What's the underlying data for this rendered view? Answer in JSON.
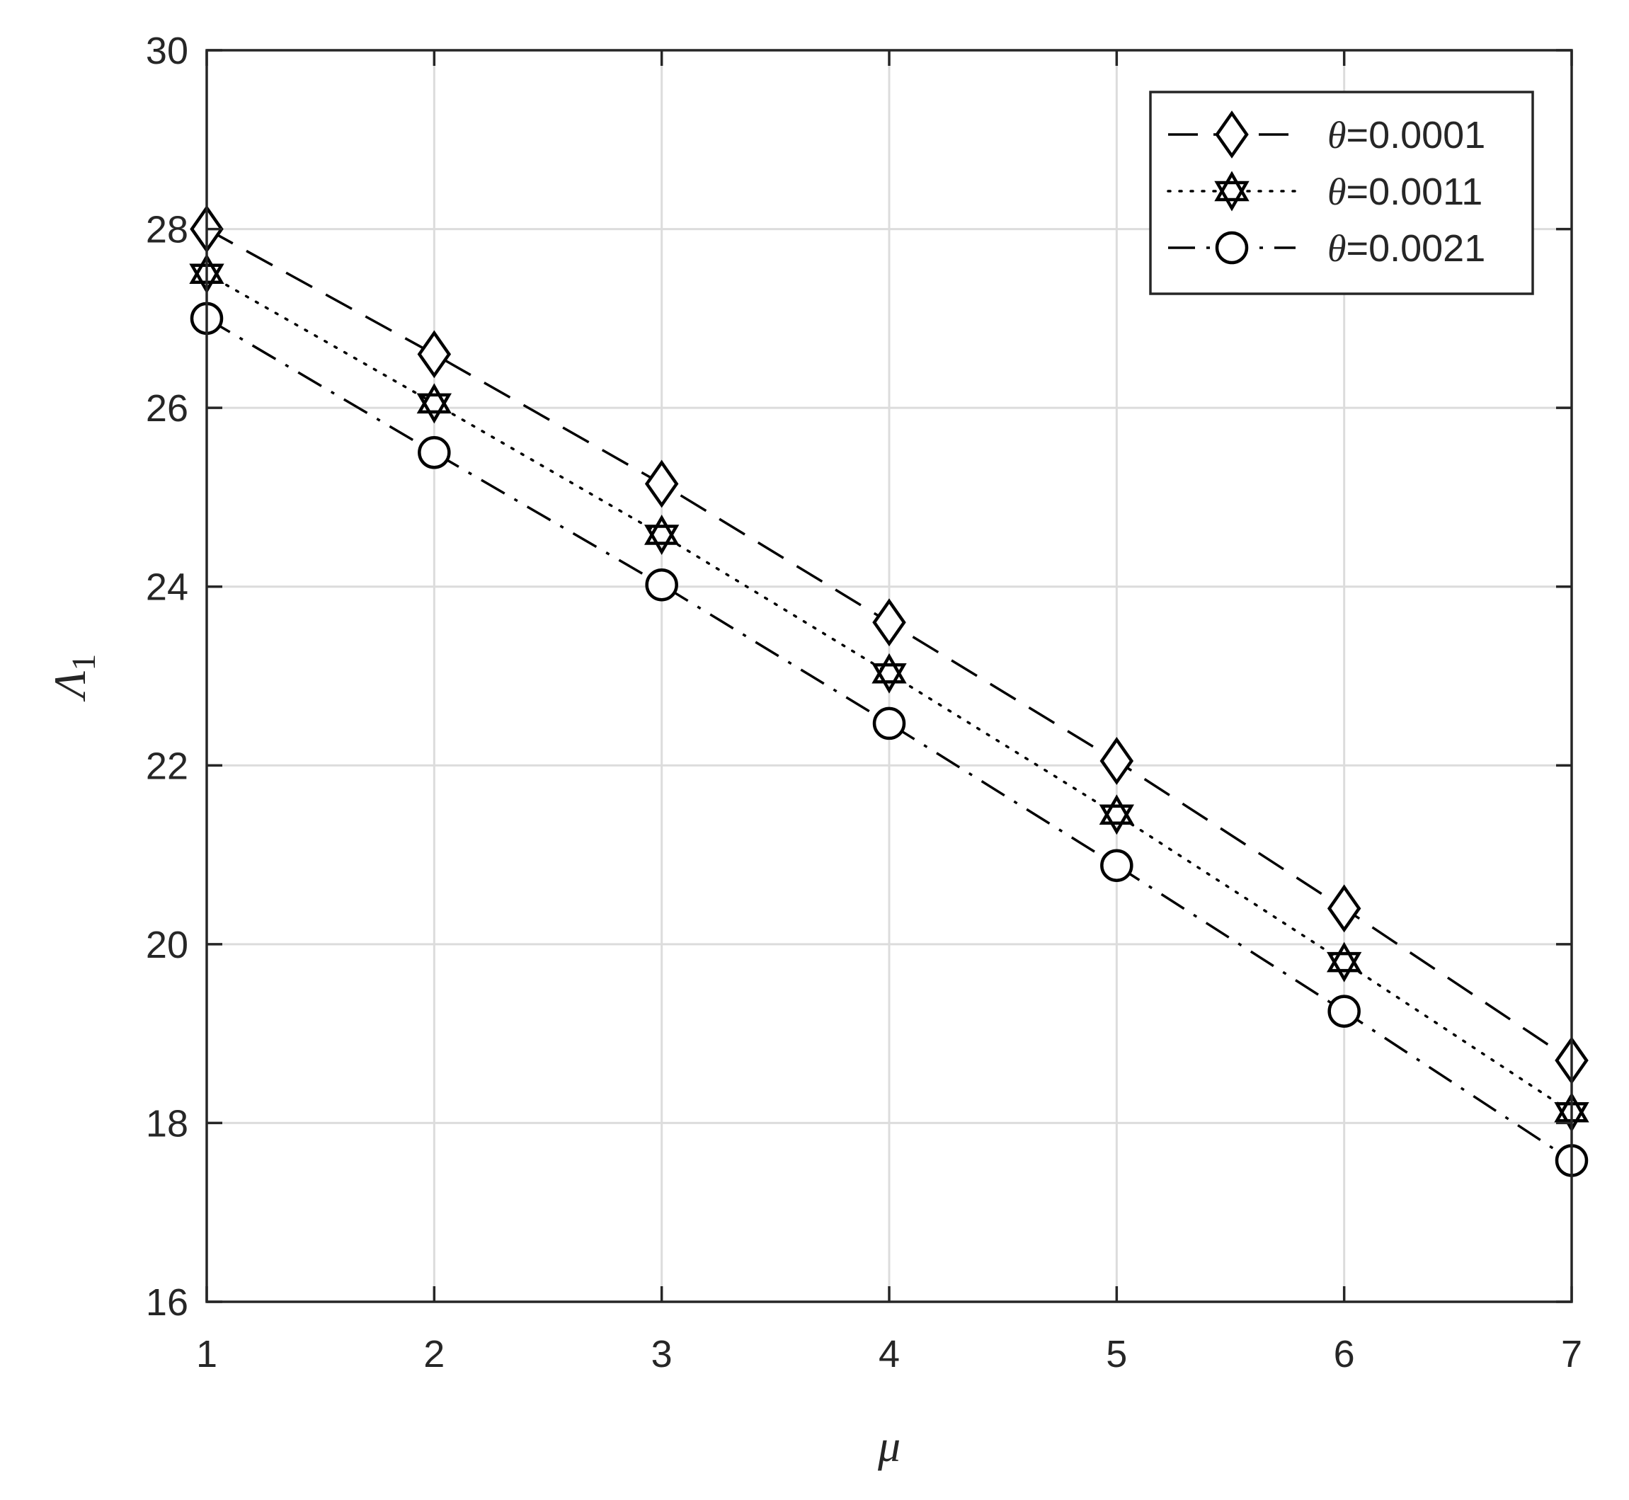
{
  "chart_data": {
    "type": "line",
    "xlabel": "μ",
    "ylabel": "Λ",
    "ylabel_subscript": "1",
    "xlim": [
      1,
      7
    ],
    "ylim": [
      16,
      30
    ],
    "x_ticks": [
      1,
      2,
      3,
      4,
      5,
      6,
      7
    ],
    "y_ticks": [
      16,
      18,
      20,
      22,
      24,
      26,
      28,
      30
    ],
    "grid": true,
    "legend_position": "top-right",
    "x": [
      1,
      2,
      3,
      4,
      5,
      6,
      7
    ],
    "series": [
      {
        "name": "θ=0.0001",
        "name_symbol": "θ",
        "name_value": "=0.0001",
        "marker": "diamond",
        "line_style": "dashed",
        "values": [
          28.0,
          26.6,
          25.15,
          23.6,
          22.05,
          20.4,
          18.7
        ]
      },
      {
        "name": "θ=0.0011",
        "name_symbol": "θ",
        "name_value": "=0.0011",
        "marker": "hexagram",
        "line_style": "dotted",
        "values": [
          27.5,
          26.05,
          24.58,
          23.03,
          21.45,
          19.8,
          18.12
        ]
      },
      {
        "name": "θ=0.0021",
        "name_symbol": "θ",
        "name_value": "=0.0021",
        "marker": "circle",
        "line_style": "dash-dot",
        "values": [
          27.0,
          25.5,
          24.02,
          22.47,
          20.88,
          19.25,
          17.58
        ]
      }
    ],
    "colors": {
      "line": "#000000",
      "grid": "#dcdcdc",
      "axis": "#262626",
      "background": "#ffffff"
    }
  }
}
